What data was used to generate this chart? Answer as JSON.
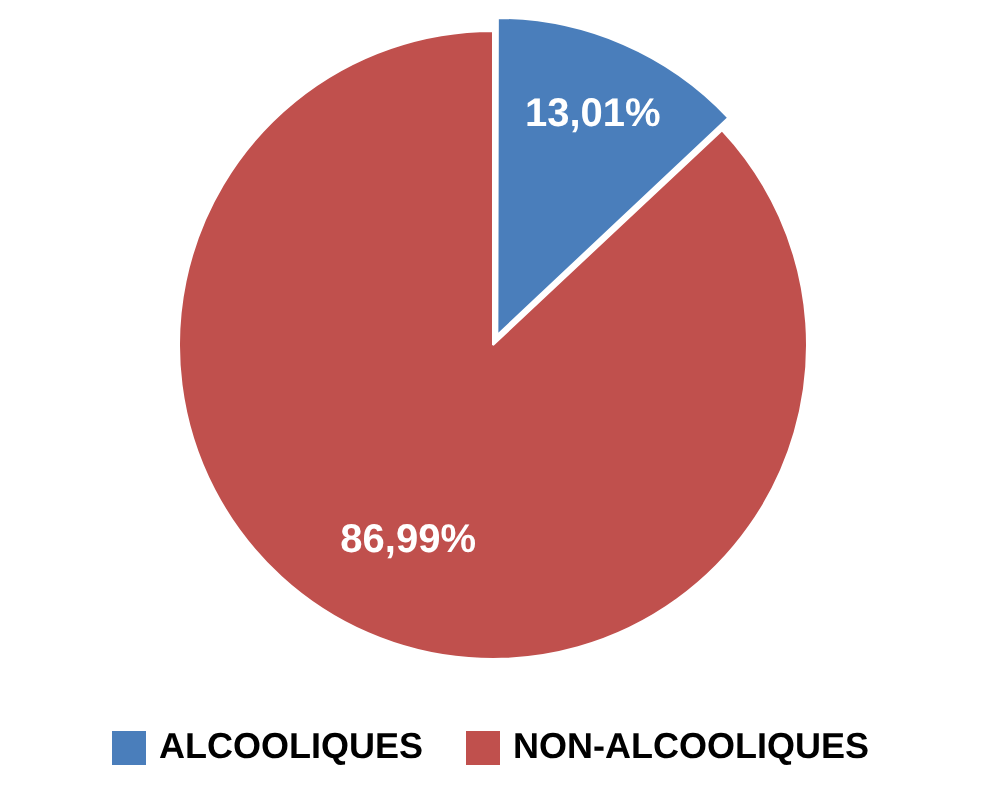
{
  "chart_data": {
    "type": "pie",
    "categories": [
      "ALCOOLIQUES",
      "NON-ALCOOLIQUES"
    ],
    "values": [
      13.01,
      86.99
    ],
    "colors": [
      "#4a7ebb",
      "#c0504d"
    ],
    "value_labels": [
      "13,01%",
      "86,99%"
    ],
    "legend": "bottom"
  }
}
